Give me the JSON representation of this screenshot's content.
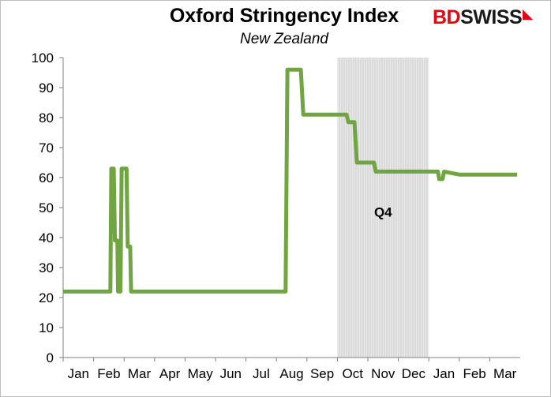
{
  "logo": {
    "part1": "BD",
    "part2": "SWISS",
    "mark": "◣"
  },
  "chart_data": {
    "type": "line",
    "title": "Oxford Stringency Index",
    "subtitle": "New Zealand",
    "xlabel": "",
    "ylabel": "",
    "ylim": [
      0,
      100
    ],
    "yticks": [
      0,
      10,
      20,
      30,
      40,
      50,
      60,
      70,
      80,
      90,
      100
    ],
    "xticks": [
      "Jan",
      "Feb",
      "Mar",
      "Apr",
      "May",
      "Jun",
      "Jul",
      "Aug",
      "Sep",
      "Oct",
      "Nov",
      "Dec",
      "Jan",
      "Feb",
      "Mar"
    ],
    "xlim_months": [
      0,
      15
    ],
    "grid": false,
    "shaded_region": {
      "label": "Q4",
      "start_month": 9.0,
      "end_month": 12.0,
      "color": "#d9d9d9"
    },
    "series": [
      {
        "name": "",
        "color": "#70a542",
        "x": [
          0.0,
          1.55,
          1.58,
          1.66,
          1.7,
          1.78,
          1.8,
          1.88,
          1.92,
          1.98,
          2.0,
          2.08,
          2.12,
          2.2,
          2.23,
          7.3,
          7.36,
          7.8,
          7.88,
          8.55,
          8.62,
          9.3,
          9.36,
          9.56,
          9.64,
          10.2,
          10.26,
          11.0,
          11.06,
          12.3,
          12.34,
          12.45,
          12.5,
          13.0,
          13.6,
          14.9
        ],
        "y": [
          22,
          22,
          63,
          63,
          39,
          39,
          22,
          22,
          63,
          63,
          63,
          63,
          37,
          37,
          22,
          22,
          96,
          96,
          81,
          81,
          81,
          81,
          78.5,
          78.5,
          65,
          65,
          62,
          62,
          62,
          62,
          59.5,
          59.5,
          62,
          61,
          61,
          61
        ]
      }
    ]
  }
}
